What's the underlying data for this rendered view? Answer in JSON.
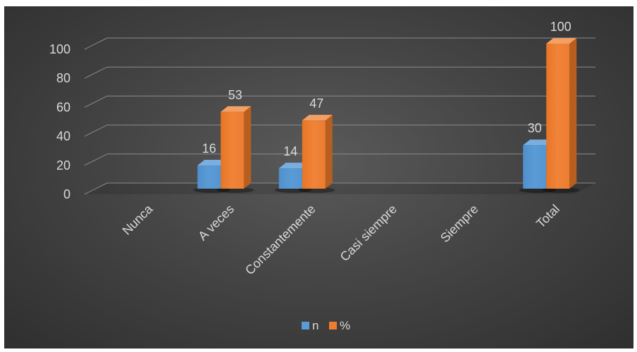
{
  "chart_data": {
    "type": "bar",
    "title": "",
    "xlabel": "",
    "ylabel": "",
    "categories": [
      "Nunca",
      "A veces",
      "Constantemente",
      "Casi siempre",
      "Siempre",
      "Total"
    ],
    "series": [
      {
        "name": "n",
        "values": [
          null,
          16,
          14,
          null,
          null,
          30
        ],
        "labels": [
          "",
          "16",
          "14",
          "",
          "",
          "30"
        ]
      },
      {
        "name": "%",
        "values": [
          null,
          53,
          47,
          null,
          null,
          100
        ],
        "labels": [
          "",
          "53",
          "47",
          "",
          "",
          "100"
        ]
      }
    ],
    "yticks": [
      "0",
      "20",
      "40",
      "60",
      "80",
      "100"
    ],
    "ylim": [
      0,
      100
    ],
    "grid": true,
    "legend": "bottom",
    "colors": {
      "n": "#5b9bd5",
      "%": "#ed7d31"
    }
  }
}
